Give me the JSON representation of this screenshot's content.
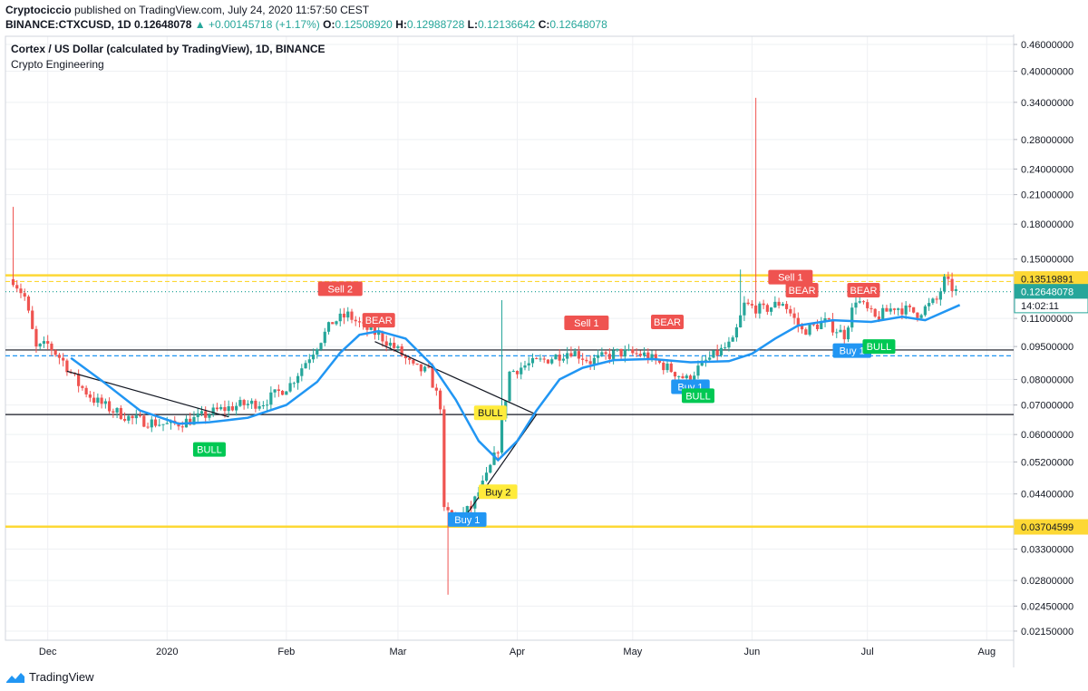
{
  "header": {
    "author": "Cryptociccio",
    "published_text": "published on TradingView.com, July 24, 2020 11:57:50 CEST",
    "symbol": "BINANCE:CTXCUSD, 1D",
    "last": "0.12648078",
    "change": "▲ +0.00145718 (+1.17%)",
    "o_label": "O:",
    "o": "0.12508920",
    "h_label": "H:",
    "h": "0.12988728",
    "l_label": "L:",
    "l": "0.12136642",
    "c_label": "C:",
    "c": "0.12648078"
  },
  "legend": {
    "title": "Cortex / US Dollar (calculated by TradingView), 1D, BINANCE",
    "indicator": "Crypto Engineering"
  },
  "footer": {
    "brand": "TradingView"
  },
  "colors": {
    "up": "#26a69a",
    "down": "#ef5350",
    "ma": "#2196f3",
    "gold": "#fdd835",
    "sell": "#ef5350",
    "buy": "#2196f3",
    "bull": "#00c853",
    "bull_alt": "#ffeb3b"
  },
  "chart_data": {
    "type": "candlestick",
    "scale": "log",
    "title": "Cortex / US Dollar (calculated by TradingView), 1D, BINANCE",
    "x_ticks": [
      {
        "label": "Dec",
        "date": "2019-12-01"
      },
      {
        "label": "2020",
        "date": "2020-01-01"
      },
      {
        "label": "Feb",
        "date": "2020-02-01"
      },
      {
        "label": "Mar",
        "date": "2020-03-01"
      },
      {
        "label": "Apr",
        "date": "2020-04-01"
      },
      {
        "label": "May",
        "date": "2020-05-01"
      },
      {
        "label": "Jun",
        "date": "2020-06-01"
      },
      {
        "label": "Jul",
        "date": "2020-07-01"
      },
      {
        "label": "Aug",
        "date": "2020-08-01"
      }
    ],
    "y_ticks": [
      "0.46000000",
      "0.40000000",
      "0.34000000",
      "0.28000000",
      "0.24000000",
      "0.21000000",
      "0.18000000",
      "0.15000000",
      "0.11000000",
      "0.09500000",
      "0.08000000",
      "0.07000000",
      "0.06000000",
      "0.05200000",
      "0.04400000",
      "0.03300000",
      "0.02800000",
      "0.02450000",
      "0.02150000"
    ],
    "ylim": [
      0.0205,
      0.48
    ],
    "xlim": [
      "2019-11-20",
      "2020-08-08"
    ],
    "price_labels": [
      {
        "value": "0.13519891",
        "level": 0.13519891,
        "style": "gold"
      },
      {
        "value": "0.12648078",
        "level": 0.12648078,
        "style": "green"
      },
      {
        "value": "14:02:11",
        "level": 0.1177,
        "style": "time"
      },
      {
        "value": "0.03704599",
        "level": 0.03704599,
        "style": "gold"
      }
    ],
    "horizontal_lines": [
      {
        "level": 0.1378,
        "color": "#fdd835",
        "style": "solid"
      },
      {
        "level": 0.1334,
        "color": "#fdd835",
        "style": "dashed"
      },
      {
        "level": 0.0371,
        "color": "#fdd835",
        "style": "solid"
      },
      {
        "level": 0.0933,
        "color": "#131722",
        "style": "solid"
      },
      {
        "level": 0.0905,
        "color": "#2196f3",
        "style": "dashed"
      },
      {
        "level": 0.0666,
        "color": "#131722",
        "style": "solid"
      },
      {
        "level": 0.1265,
        "color": "#26a69a",
        "style": "dotted"
      }
    ],
    "trend_lines": [
      {
        "from": [
          "2019-12-06",
          0.0835
        ],
        "to": [
          "2020-01-17",
          0.0658
        ]
      },
      {
        "from": [
          "2020-02-24",
          0.0975
        ],
        "to": [
          "2020-04-06",
          0.0666
        ]
      },
      {
        "from": [
          "2020-03-17",
          0.0375
        ],
        "to": [
          "2020-04-06",
          0.0666
        ]
      }
    ],
    "ma": [
      [
        "2019-12-07",
        0.0895
      ],
      [
        "2019-12-15",
        0.0795
      ],
      [
        "2019-12-25",
        0.068
      ],
      [
        "2020-01-04",
        0.0635
      ],
      [
        "2020-01-12",
        0.064
      ],
      [
        "2020-01-22",
        0.0655
      ],
      [
        "2020-02-01",
        0.07
      ],
      [
        "2020-02-09",
        0.079
      ],
      [
        "2020-02-15",
        0.092
      ],
      [
        "2020-02-20",
        0.101
      ],
      [
        "2020-02-25",
        0.103
      ],
      [
        "2020-03-03",
        0.099
      ],
      [
        "2020-03-10",
        0.086
      ],
      [
        "2020-03-16",
        0.072
      ],
      [
        "2020-03-22",
        0.058
      ],
      [
        "2020-03-27",
        0.0525
      ],
      [
        "2020-04-01",
        0.058
      ],
      [
        "2020-04-06",
        0.068
      ],
      [
        "2020-04-12",
        0.08
      ],
      [
        "2020-04-18",
        0.085
      ],
      [
        "2020-04-26",
        0.0885
      ],
      [
        "2020-05-06",
        0.089
      ],
      [
        "2020-05-16",
        0.0875
      ],
      [
        "2020-05-26",
        0.088
      ],
      [
        "2020-06-01",
        0.0915
      ],
      [
        "2020-06-07",
        0.099
      ],
      [
        "2020-06-13",
        0.106
      ],
      [
        "2020-06-22",
        0.109
      ],
      [
        "2020-07-02",
        0.108
      ],
      [
        "2020-07-10",
        0.111
      ],
      [
        "2020-07-16",
        0.109
      ],
      [
        "2020-07-25",
        0.118
      ]
    ],
    "ohlc_anchors": [
      [
        "2019-11-22",
        0.135
      ],
      [
        "2019-11-25",
        0.123
      ],
      [
        "2019-11-28",
        0.094
      ],
      [
        "2019-12-01",
        0.096
      ],
      [
        "2019-12-05",
        0.088
      ],
      [
        "2019-12-09",
        0.078
      ],
      [
        "2019-12-13",
        0.072
      ],
      [
        "2019-12-18",
        0.068
      ],
      [
        "2019-12-23",
        0.065
      ],
      [
        "2019-12-28",
        0.064
      ],
      [
        "2020-01-02",
        0.063
      ],
      [
        "2020-01-08",
        0.065
      ],
      [
        "2020-01-14",
        0.068
      ],
      [
        "2020-01-20",
        0.07
      ],
      [
        "2020-01-26",
        0.071
      ],
      [
        "2020-02-02",
        0.078
      ],
      [
        "2020-02-08",
        0.093
      ],
      [
        "2020-02-13",
        0.108
      ],
      [
        "2020-02-17",
        0.112
      ],
      [
        "2020-02-21",
        0.105
      ],
      [
        "2020-02-25",
        0.101
      ],
      [
        "2020-03-01",
        0.093
      ],
      [
        "2020-03-05",
        0.085
      ],
      [
        "2020-03-09",
        0.083
      ],
      [
        "2020-03-12",
        0.07
      ],
      [
        "2020-03-13",
        0.04
      ],
      [
        "2020-03-17",
        0.039
      ],
      [
        "2020-03-20",
        0.041
      ],
      [
        "2020-03-24",
        0.048
      ],
      [
        "2020-03-27",
        0.056
      ],
      [
        "2020-03-30",
        0.083
      ],
      [
        "2020-04-03",
        0.086
      ],
      [
        "2020-04-09",
        0.089
      ],
      [
        "2020-04-15",
        0.093
      ],
      [
        "2020-04-20",
        0.088
      ],
      [
        "2020-04-27",
        0.092
      ],
      [
        "2020-05-04",
        0.091
      ],
      [
        "2020-05-10",
        0.085
      ],
      [
        "2020-05-15",
        0.08
      ],
      [
        "2020-05-20",
        0.088
      ],
      [
        "2020-05-27",
        0.097
      ],
      [
        "2020-05-30",
        0.118
      ],
      [
        "2020-06-04",
        0.115
      ],
      [
        "2020-06-09",
        0.12
      ],
      [
        "2020-06-14",
        0.103
      ],
      [
        "2020-06-20",
        0.108
      ],
      [
        "2020-06-25",
        0.101
      ],
      [
        "2020-06-28",
        0.122
      ],
      [
        "2020-07-03",
        0.11
      ],
      [
        "2020-07-08",
        0.117
      ],
      [
        "2020-07-14",
        0.113
      ],
      [
        "2020-07-19",
        0.121
      ],
      [
        "2020-07-21",
        0.134
      ],
      [
        "2020-07-24",
        0.1265
      ]
    ],
    "wick_spikes": [
      {
        "date": "2019-11-22",
        "high": 0.197
      },
      {
        "date": "2020-03-14",
        "low": 0.026
      },
      {
        "date": "2020-03-28",
        "high": 0.121
      },
      {
        "date": "2020-06-02",
        "high": 0.348
      },
      {
        "date": "2020-05-29",
        "high": 0.142
      }
    ],
    "signals": [
      {
        "text": "Sell 2",
        "date": "2020-02-15",
        "level": 0.1285,
        "kind": "sell"
      },
      {
        "text": "BEAR",
        "date": "2020-02-25",
        "level": 0.109,
        "kind": "bear"
      },
      {
        "text": "BULL",
        "date": "2020-01-12",
        "level": 0.0555,
        "kind": "bull"
      },
      {
        "text": "BULL",
        "date": "2020-03-25",
        "level": 0.0672,
        "kind": "bull_alt"
      },
      {
        "text": "Buy 2",
        "date": "2020-03-27",
        "level": 0.0445,
        "kind": "buy_alt"
      },
      {
        "text": "Buy 1",
        "date": "2020-03-19",
        "level": 0.0385,
        "kind": "buy"
      },
      {
        "text": "Sell 1",
        "date": "2020-04-19",
        "level": 0.1075,
        "kind": "sell"
      },
      {
        "text": "BEAR",
        "date": "2020-05-10",
        "level": 0.108,
        "kind": "bear"
      },
      {
        "text": "Buy 1",
        "date": "2020-05-16",
        "level": 0.077,
        "kind": "buy"
      },
      {
        "text": "BULL",
        "date": "2020-05-18",
        "level": 0.0735,
        "kind": "bull"
      },
      {
        "text": "Sell 1",
        "date": "2020-06-11",
        "level": 0.1365,
        "kind": "sell"
      },
      {
        "text": "BEAR",
        "date": "2020-06-14",
        "level": 0.1275,
        "kind": "bear"
      },
      {
        "text": "BEAR",
        "date": "2020-06-30",
        "level": 0.1275,
        "kind": "bear"
      },
      {
        "text": "Buy 1",
        "date": "2020-06-27",
        "level": 0.093,
        "kind": "buy"
      },
      {
        "text": "BULL",
        "date": "2020-07-04",
        "level": 0.095,
        "kind": "bull"
      }
    ]
  }
}
